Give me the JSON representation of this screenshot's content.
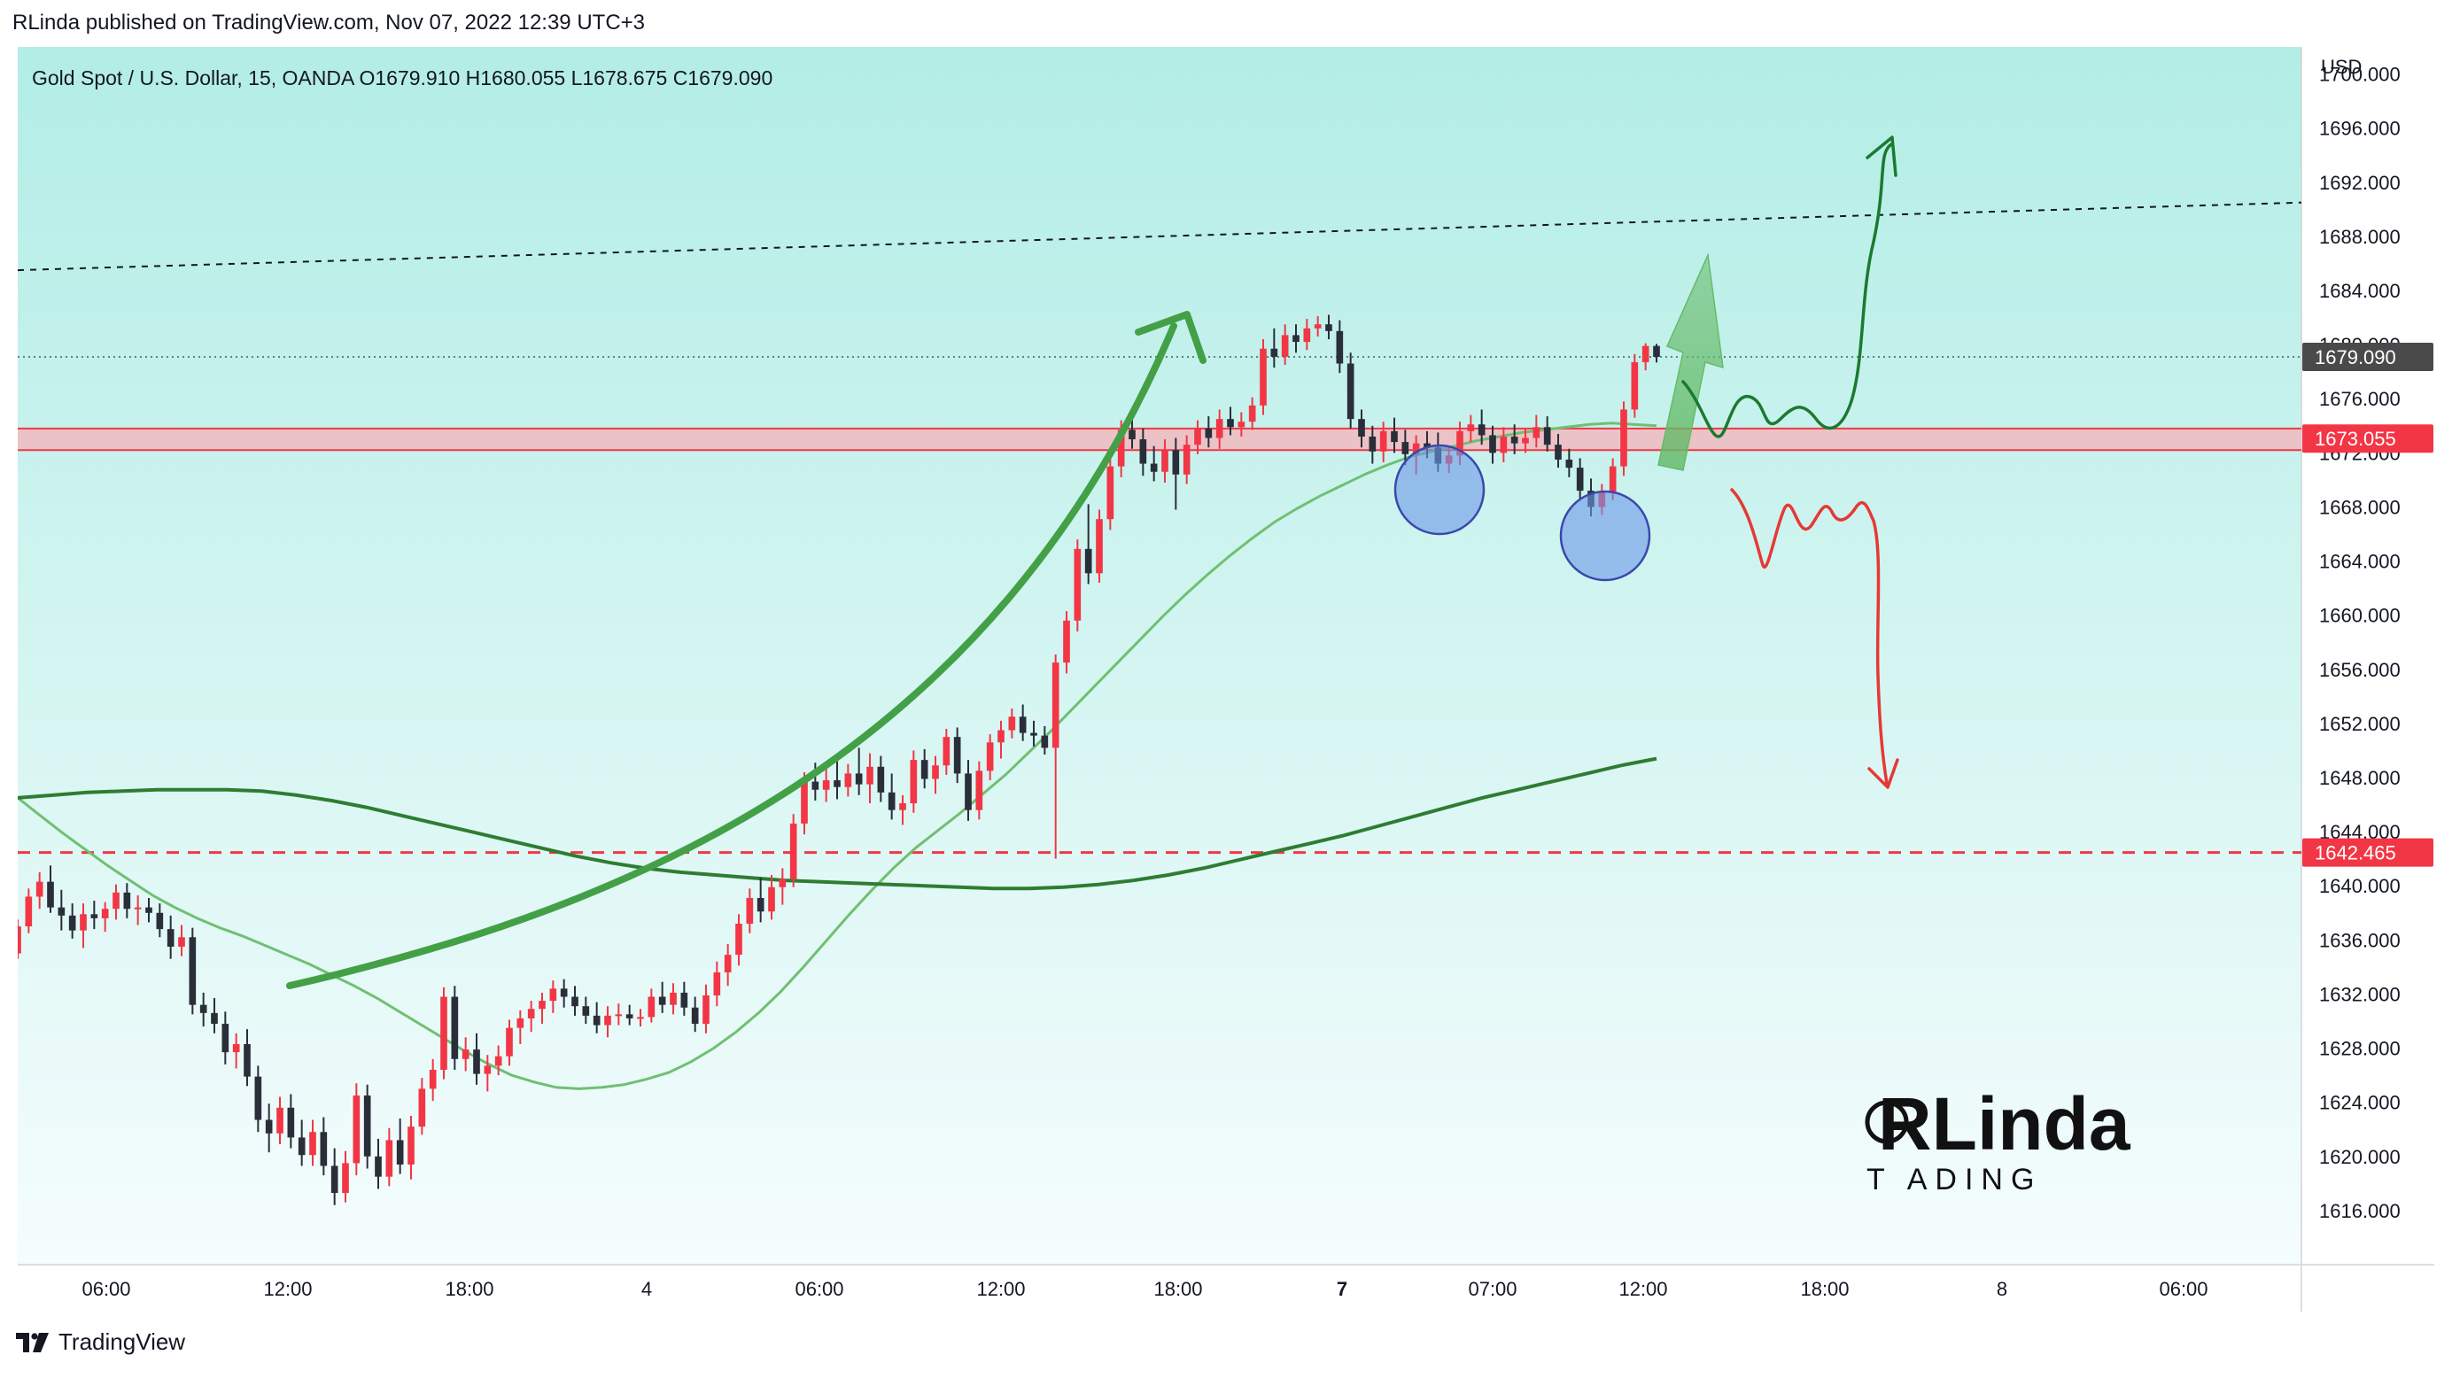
{
  "header": {
    "published": "RLinda published on TradingView.com, Nov 07, 2022 12:39 UTC+3",
    "legend": "Gold Spot / U.S. Dollar, 15, OANDA  O1679.910  H1680.055  L1678.675  C1679.090"
  },
  "footer": {
    "brand": "TradingView",
    "icon": "tradingview-logo-icon"
  },
  "watermark": {
    "big": "RLinda",
    "small": "T  ADING"
  },
  "colors": {
    "bg_top": "#b2ede6",
    "bg_bottom": "#f5fdfd",
    "up": "#f23645",
    "down": "#2a2e39",
    "ma_light": "#6fc072",
    "ma_dark": "#2e7d32",
    "support": "#f23645",
    "zone_fill": "#f7b2b8",
    "arrow": "#43a047",
    "scenario_up": "#1b7a2f",
    "scenario_down": "#e53935",
    "circle": "#6d97e8"
  },
  "chart_data": {
    "type": "candlestick",
    "symbol": "Gold Spot / U.S. Dollar",
    "interval": "15",
    "source": "OANDA",
    "open": 1679.91,
    "high": 1680.055,
    "low": 1678.675,
    "close": 1679.09,
    "ylim": [
      1612,
      1702
    ],
    "y_unit": "USD",
    "y_ticks": [
      1616,
      1620,
      1624,
      1628,
      1632,
      1636,
      1640,
      1644,
      1648,
      1652,
      1656,
      1660,
      1664,
      1668,
      1672,
      1676,
      1680,
      1684,
      1688,
      1692,
      1696,
      1700
    ],
    "x_ticks": [
      "06:00",
      "12:00",
      "18:00",
      "4",
      "06:00",
      "12:00",
      "18:00",
      "7",
      "07:00",
      "12:00",
      "18:00",
      "8",
      "06:00"
    ],
    "price_labels": [
      {
        "value": 1679.09,
        "label": "1679.090",
        "style": "last"
      },
      {
        "value": 1673.055,
        "label": "1673.055",
        "style": "zone"
      },
      {
        "value": 1642.465,
        "label": "1642.465",
        "style": "support"
      }
    ],
    "key_levels": {
      "zone_top": 1673.8,
      "zone_bottom": 1672.2,
      "support": 1642.465
    },
    "trendline": {
      "start": 1685.5,
      "end": 1690.5
    },
    "candles": [
      [
        1635,
        1637.5,
        1634.6,
        1637
      ],
      [
        1637,
        1639.8,
        1636.5,
        1639.2
      ],
      [
        1639.2,
        1641,
        1638.3,
        1640.3
      ],
      [
        1640.3,
        1641.5,
        1638,
        1638.4
      ],
      [
        1638.4,
        1639.7,
        1636.7,
        1637.8
      ],
      [
        1637.8,
        1638.7,
        1636.1,
        1636.7
      ],
      [
        1636.7,
        1638.7,
        1635.4,
        1637.9
      ],
      [
        1637.9,
        1638.9,
        1636.8,
        1637.6
      ],
      [
        1637.6,
        1638.8,
        1636.6,
        1638.3
      ],
      [
        1638.3,
        1640.1,
        1637.5,
        1639.5
      ],
      [
        1639.5,
        1640.2,
        1637.6,
        1638.3
      ],
      [
        1638.3,
        1639.3,
        1637.1,
        1638.4
      ],
      [
        1638.4,
        1639.1,
        1637.3,
        1638
      ],
      [
        1638,
        1638.7,
        1636.2,
        1636.8
      ],
      [
        1636.8,
        1637.8,
        1634.6,
        1635.5
      ],
      [
        1635.5,
        1637.1,
        1634.8,
        1636.2
      ],
      [
        1636.2,
        1636.9,
        1630.5,
        1631.2
      ],
      [
        1631.2,
        1632.1,
        1629.6,
        1630.6
      ],
      [
        1630.6,
        1631.7,
        1629.1,
        1629.8
      ],
      [
        1629.8,
        1630.7,
        1626.8,
        1627.7
      ],
      [
        1627.7,
        1629.1,
        1626.5,
        1628.3
      ],
      [
        1628.3,
        1629.4,
        1625.2,
        1625.9
      ],
      [
        1625.9,
        1626.7,
        1621.8,
        1622.7
      ],
      [
        1622.7,
        1623.9,
        1620.3,
        1621.7
      ],
      [
        1621.7,
        1624.4,
        1620.9,
        1623.6
      ],
      [
        1623.6,
        1624.6,
        1620.6,
        1621.4
      ],
      [
        1621.4,
        1622.7,
        1619.3,
        1620.1
      ],
      [
        1620.1,
        1622.7,
        1619.3,
        1621.8
      ],
      [
        1621.8,
        1622.9,
        1618.6,
        1619.3
      ],
      [
        1619.3,
        1620.6,
        1616.4,
        1617.3
      ],
      [
        1617.3,
        1620.4,
        1616.6,
        1619.5
      ],
      [
        1619.5,
        1625.4,
        1618.6,
        1624.5
      ],
      [
        1624.5,
        1625.3,
        1619.1,
        1620
      ],
      [
        1620,
        1621.3,
        1617.6,
        1618.5
      ],
      [
        1618.5,
        1622.1,
        1617.8,
        1621.2
      ],
      [
        1621.2,
        1622.8,
        1618.7,
        1619.4
      ],
      [
        1619.4,
        1623,
        1618.3,
        1622.2
      ],
      [
        1622.2,
        1625.8,
        1621.6,
        1625
      ],
      [
        1625,
        1627.2,
        1624.1,
        1626.4
      ],
      [
        1626.4,
        1632.5,
        1625.7,
        1631.8
      ],
      [
        1631.8,
        1632.6,
        1626.4,
        1627.2
      ],
      [
        1627.2,
        1628.8,
        1626.3,
        1627.9
      ],
      [
        1627.9,
        1629.1,
        1625.3,
        1626.1
      ],
      [
        1626.1,
        1627.5,
        1624.8,
        1626.7
      ],
      [
        1626.7,
        1628.2,
        1626,
        1627.4
      ],
      [
        1627.4,
        1630.1,
        1626.7,
        1629.5
      ],
      [
        1629.5,
        1630.8,
        1628.3,
        1630.2
      ],
      [
        1630.2,
        1631.5,
        1629.2,
        1630.9
      ],
      [
        1630.9,
        1632.1,
        1629.8,
        1631.5
      ],
      [
        1631.5,
        1633,
        1630.6,
        1632.4
      ],
      [
        1632.4,
        1633.1,
        1631,
        1631.8
      ],
      [
        1631.8,
        1632.6,
        1630.4,
        1631.1
      ],
      [
        1631.1,
        1631.8,
        1629.8,
        1630.4
      ],
      [
        1630.4,
        1631.4,
        1629.1,
        1629.7
      ],
      [
        1629.7,
        1631.1,
        1628.8,
        1630.4
      ],
      [
        1630.4,
        1631.3,
        1629.7,
        1630.5
      ],
      [
        1630.5,
        1631.2,
        1629.7,
        1630.2
      ],
      [
        1630.2,
        1630.9,
        1629.6,
        1630.3
      ],
      [
        1630.3,
        1632.4,
        1629.9,
        1631.8
      ],
      [
        1631.8,
        1632.9,
        1630.6,
        1631.2
      ],
      [
        1631.2,
        1632.8,
        1630.5,
        1632.1
      ],
      [
        1632.1,
        1632.9,
        1630.4,
        1631
      ],
      [
        1631,
        1631.8,
        1629.2,
        1629.8
      ],
      [
        1629.8,
        1632.7,
        1629.1,
        1631.9
      ],
      [
        1631.9,
        1634.4,
        1631.1,
        1633.6
      ],
      [
        1633.6,
        1635.7,
        1632.6,
        1634.9
      ],
      [
        1634.9,
        1637.9,
        1634.1,
        1637.2
      ],
      [
        1637.2,
        1639.8,
        1636.5,
        1639.1
      ],
      [
        1639.1,
        1640.6,
        1637.3,
        1638.1
      ],
      [
        1638.1,
        1640.8,
        1637.5,
        1639.9
      ],
      [
        1639.9,
        1641.3,
        1638.6,
        1640.5
      ],
      [
        1640.5,
        1645.3,
        1639.9,
        1644.6
      ],
      [
        1644.6,
        1648.4,
        1643.8,
        1647.7
      ],
      [
        1647.7,
        1649.1,
        1646.3,
        1647.1
      ],
      [
        1647.1,
        1648.7,
        1646.2,
        1647.8
      ],
      [
        1647.8,
        1649.2,
        1646.4,
        1647.3
      ],
      [
        1647.3,
        1649,
        1646.6,
        1648.3
      ],
      [
        1648.3,
        1650.2,
        1646.7,
        1647.5
      ],
      [
        1647.5,
        1649.8,
        1646.1,
        1648.8
      ],
      [
        1648.8,
        1649.6,
        1646.2,
        1646.9
      ],
      [
        1646.9,
        1648.3,
        1644.9,
        1645.6
      ],
      [
        1645.6,
        1646.7,
        1644.5,
        1646.1
      ],
      [
        1646.1,
        1650,
        1645.4,
        1649.3
      ],
      [
        1649.3,
        1650.1,
        1647.2,
        1647.9
      ],
      [
        1647.9,
        1649.6,
        1646.8,
        1648.9
      ],
      [
        1648.9,
        1651.6,
        1648.2,
        1651
      ],
      [
        1651,
        1651.7,
        1647.6,
        1648.3
      ],
      [
        1648.3,
        1649.3,
        1644.8,
        1645.6
      ],
      [
        1645.6,
        1649.2,
        1644.9,
        1648.5
      ],
      [
        1648.5,
        1651.2,
        1647.8,
        1650.6
      ],
      [
        1650.6,
        1652.2,
        1649.4,
        1651.5
      ],
      [
        1651.5,
        1653.1,
        1650.9,
        1652.5
      ],
      [
        1652.5,
        1653.4,
        1650.7,
        1651.3
      ],
      [
        1651.3,
        1652.2,
        1650.3,
        1651.1
      ],
      [
        1651.1,
        1651.8,
        1649.7,
        1650.2
      ],
      [
        1650.2,
        1657.1,
        1642,
        1656.5
      ],
      [
        1656.5,
        1660.3,
        1655.7,
        1659.6
      ],
      [
        1659.6,
        1665.6,
        1658.8,
        1664.9
      ],
      [
        1664.9,
        1668.2,
        1662.3,
        1663.1
      ],
      [
        1663.1,
        1667.8,
        1662.4,
        1667.1
      ],
      [
        1667.1,
        1671.8,
        1666.3,
        1671
      ],
      [
        1671,
        1674.4,
        1670.2,
        1673.7
      ],
      [
        1673.7,
        1675,
        1672.3,
        1673
      ],
      [
        1673,
        1673.8,
        1670.3,
        1671.2
      ],
      [
        1671.2,
        1672.5,
        1669.9,
        1670.6
      ],
      [
        1670.6,
        1673,
        1669.8,
        1672.2
      ],
      [
        1672.2,
        1673.1,
        1667.8,
        1670.4
      ],
      [
        1670.4,
        1673.3,
        1669.7,
        1672.6
      ],
      [
        1672.6,
        1674.4,
        1671.9,
        1673.8
      ],
      [
        1673.8,
        1674.7,
        1672.4,
        1673.1
      ],
      [
        1673.1,
        1675.2,
        1672.3,
        1674.5
      ],
      [
        1674.5,
        1675.4,
        1673.3,
        1673.9
      ],
      [
        1673.9,
        1675,
        1673.2,
        1674.3
      ],
      [
        1674.3,
        1676.1,
        1673.7,
        1675.5
      ],
      [
        1675.5,
        1680.4,
        1674.8,
        1679.7
      ],
      [
        1679.7,
        1681.2,
        1678.3,
        1679.1
      ],
      [
        1679.1,
        1681.5,
        1678.5,
        1680.7
      ],
      [
        1680.7,
        1681.5,
        1679.4,
        1680.2
      ],
      [
        1680.2,
        1681.9,
        1679.6,
        1681.2
      ],
      [
        1681.2,
        1682.1,
        1680.6,
        1681.5
      ],
      [
        1681.5,
        1682.2,
        1680.4,
        1681
      ],
      [
        1681,
        1681.8,
        1677.9,
        1678.6
      ],
      [
        1678.6,
        1679.4,
        1673.8,
        1674.5
      ],
      [
        1674.5,
        1675.2,
        1672.4,
        1673.2
      ],
      [
        1673.2,
        1674,
        1671.2,
        1672.1
      ],
      [
        1672.1,
        1674.3,
        1671.3,
        1673.6
      ],
      [
        1673.6,
        1674.6,
        1672,
        1672.8
      ],
      [
        1672.8,
        1673.7,
        1671.1,
        1671.9
      ],
      [
        1671.9,
        1673.3,
        1670.4,
        1672.7
      ],
      [
        1672.7,
        1673.6,
        1671.6,
        1672.4
      ],
      [
        1672.4,
        1673.5,
        1670.6,
        1671.2
      ],
      [
        1671.2,
        1672.5,
        1670.5,
        1671.8
      ],
      [
        1671.8,
        1674.3,
        1671.1,
        1673.6
      ],
      [
        1673.6,
        1674.8,
        1672.8,
        1674.1
      ],
      [
        1674.1,
        1675.2,
        1672.6,
        1673.3
      ],
      [
        1673.3,
        1674,
        1671.2,
        1672
      ],
      [
        1672,
        1673.9,
        1671.3,
        1673.2
      ],
      [
        1673.2,
        1674.1,
        1671.9,
        1672.7
      ],
      [
        1672.7,
        1673.8,
        1672,
        1673.1
      ],
      [
        1673.1,
        1674.8,
        1672.4,
        1673.9
      ],
      [
        1673.9,
        1674.7,
        1672.1,
        1672.6
      ],
      [
        1672.6,
        1673.4,
        1670.9,
        1671.5
      ],
      [
        1671.5,
        1672.3,
        1670.2,
        1670.9
      ],
      [
        1670.9,
        1671.6,
        1668.6,
        1669.2
      ],
      [
        1669.2,
        1670.1,
        1667.3,
        1668
      ],
      [
        1668,
        1669.7,
        1667.4,
        1669.1
      ],
      [
        1669.1,
        1671.6,
        1668.5,
        1671
      ],
      [
        1671,
        1675.8,
        1670.3,
        1675.2
      ],
      [
        1675.2,
        1679.3,
        1674.6,
        1678.7
      ],
      [
        1678.7,
        1680.1,
        1678.1,
        1679.9
      ],
      [
        1679.9,
        1680.055,
        1678.675,
        1679.09
      ]
    ],
    "ma_fast": [
      1646.5,
      1645.2,
      1643.9,
      1642.7,
      1641.5,
      1640.4,
      1639.3,
      1638.4,
      1637.6,
      1636.9,
      1636.3,
      1635.6,
      1634.9,
      1634.2,
      1633.4,
      1632.6,
      1631.7,
      1630.7,
      1629.7,
      1628.7,
      1627.7,
      1626.8,
      1626,
      1625.5,
      1625.1,
      1625,
      1625.1,
      1625.3,
      1625.7,
      1626.2,
      1627,
      1628,
      1629.2,
      1630.6,
      1632.2,
      1634,
      1635.9,
      1637.8,
      1639.6,
      1641.3,
      1642.8,
      1644.1,
      1645.4,
      1646.8,
      1648.2,
      1649.8,
      1651.4,
      1653.1,
      1654.8,
      1656.5,
      1658.2,
      1659.9,
      1661.5,
      1663,
      1664.4,
      1665.7,
      1666.9,
      1667.9,
      1668.8,
      1669.6,
      1670.4,
      1671.1,
      1671.7,
      1672.1,
      1672.5,
      1672.9,
      1673.2,
      1673.5,
      1673.7,
      1673.9,
      1674.1,
      1674.2,
      1674.1,
      1674
    ],
    "ma_slow": [
      1646.5,
      1646.7,
      1646.9,
      1647,
      1647.1,
      1647.1,
      1647.1,
      1647,
      1646.7,
      1646.3,
      1645.8,
      1645.2,
      1644.6,
      1644,
      1643.4,
      1642.8,
      1642.2,
      1641.7,
      1641.3,
      1641,
      1640.8,
      1640.6,
      1640.4,
      1640.3,
      1640.2,
      1640.1,
      1640,
      1639.9,
      1639.8,
      1639.8,
      1639.9,
      1640.1,
      1640.4,
      1640.8,
      1641.3,
      1641.9,
      1642.5,
      1643.1,
      1643.7,
      1644.4,
      1645.1,
      1645.8,
      1646.5,
      1647.1,
      1647.7,
      1648.3,
      1648.9,
      1649.4
    ]
  }
}
